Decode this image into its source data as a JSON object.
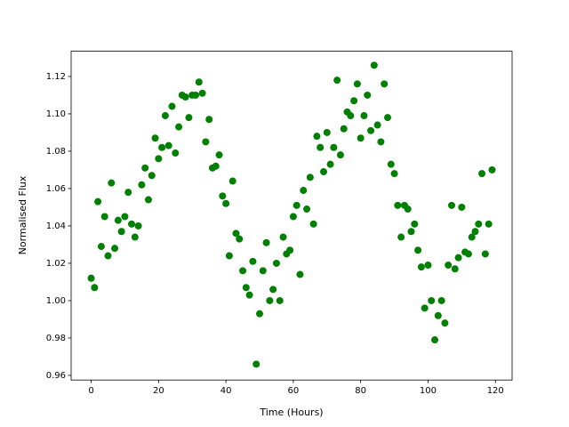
{
  "chart_data": {
    "type": "scatter",
    "xlabel": "Time (Hours)",
    "ylabel": "Normalised Flux",
    "color": "#008000",
    "x": [
      0,
      1,
      2,
      3,
      4,
      5,
      6,
      7,
      8,
      9,
      10,
      11,
      12,
      13,
      14,
      15,
      16,
      17,
      18,
      19,
      20,
      21,
      22,
      23,
      24,
      25,
      26,
      27,
      28,
      29,
      30,
      31,
      32,
      33,
      34,
      35,
      36,
      37,
      38,
      39,
      40,
      41,
      42,
      43,
      44,
      45,
      46,
      47,
      48,
      49,
      50,
      51,
      52,
      53,
      54,
      55,
      56,
      57,
      58,
      59,
      60,
      61,
      62,
      63,
      64,
      65,
      66,
      67,
      68,
      69,
      70,
      71,
      72,
      73,
      74,
      75,
      76,
      77,
      78,
      79,
      80,
      81,
      82,
      83,
      84,
      85,
      86,
      87,
      88,
      89,
      90,
      91,
      92,
      93,
      94,
      95,
      96,
      97,
      98,
      99,
      100,
      101,
      102,
      103,
      104,
      105,
      106,
      107,
      108,
      109,
      110,
      111,
      112,
      113,
      114,
      115,
      116,
      117,
      118,
      119
    ],
    "values": [
      1.012,
      1.007,
      1.053,
      1.029,
      1.045,
      1.024,
      1.063,
      1.028,
      1.043,
      1.037,
      1.045,
      1.058,
      1.041,
      1.034,
      1.04,
      1.062,
      1.071,
      1.054,
      1.067,
      1.087,
      1.076,
      1.082,
      1.099,
      1.083,
      1.104,
      1.079,
      1.093,
      1.11,
      1.109,
      1.098,
      1.11,
      1.11,
      1.117,
      1.111,
      1.085,
      1.097,
      1.071,
      1.072,
      1.078,
      1.056,
      1.052,
      1.024,
      1.064,
      1.036,
      1.033,
      1.016,
      1.007,
      1.003,
      1.021,
      0.966,
      0.993,
      1.016,
      1.031,
      1.0,
      1.006,
      1.02,
      1.0,
      1.034,
      1.025,
      1.027,
      1.045,
      1.051,
      1.014,
      1.059,
      1.049,
      1.066,
      1.041,
      1.088,
      1.082,
      1.069,
      1.09,
      1.073,
      1.082,
      1.118,
      1.078,
      1.092,
      1.101,
      1.099,
      1.107,
      1.116,
      1.087,
      1.099,
      1.11,
      1.091,
      1.126,
      1.094,
      1.085,
      1.116,
      1.098,
      1.073,
      1.068,
      1.051,
      1.034,
      1.051,
      1.049,
      1.037,
      1.041,
      1.027,
      1.018,
      0.996,
      1.019,
      1.0,
      0.979,
      0.992,
      1.0,
      0.988,
      1.019,
      1.051,
      1.017,
      1.023,
      1.05,
      1.026,
      1.025,
      1.034,
      1.037,
      1.041,
      1.068,
      1.025,
      1.041,
      1.07
    ],
    "xlim": [
      -5.95,
      124.95
    ],
    "xticks": [
      0,
      20,
      40,
      60,
      80,
      100,
      120
    ],
    "ylim": [
      0.9575,
      1.1335
    ],
    "yticks": [
      0.96,
      0.98,
      {
        "value": 1,
        "label": "1.00"
      },
      1.02,
      1.04,
      1.06,
      1.08,
      {
        "value": 1.1,
        "label": "1.10"
      },
      1.12
    ]
  }
}
